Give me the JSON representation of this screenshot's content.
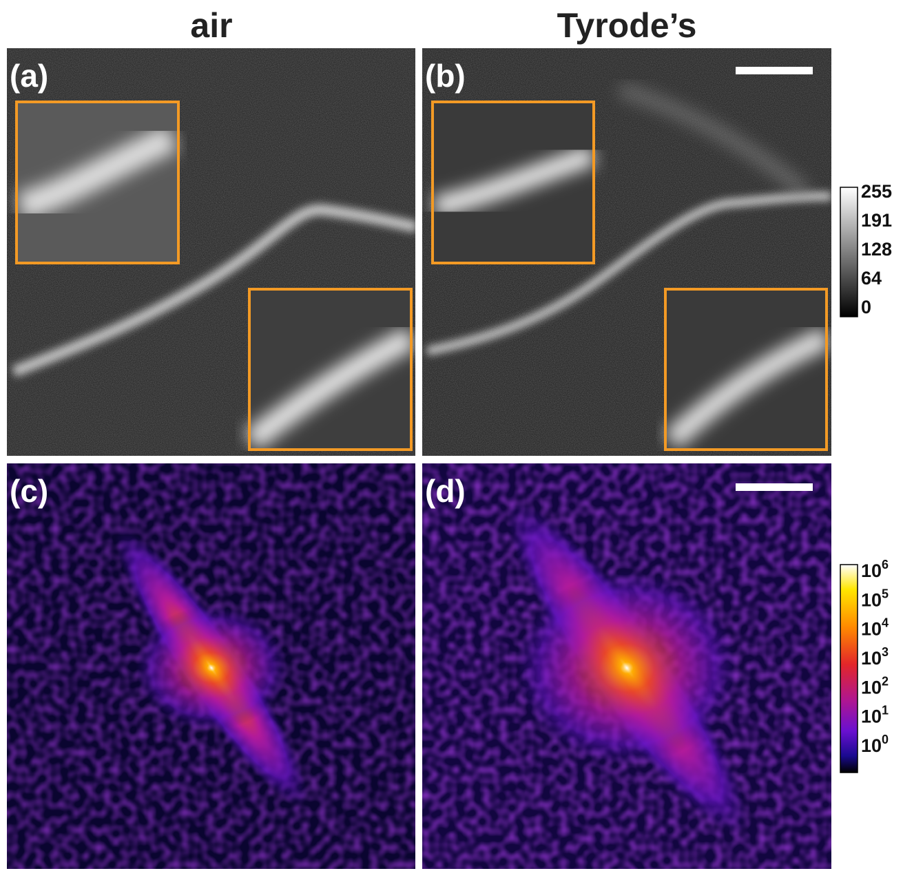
{
  "columns": [
    "air",
    "Tyrode’s"
  ],
  "panels": [
    "(a)",
    "(b)",
    "(c)",
    "(d)"
  ],
  "colorbar_linear": {
    "ticks": [
      "255",
      "191",
      "128",
      "64",
      "0"
    ]
  },
  "colorbar_log": {
    "ticks": [
      {
        "base": "10",
        "exponent": "6"
      },
      {
        "base": "10",
        "exponent": "5"
      },
      {
        "base": "10",
        "exponent": "4"
      },
      {
        "base": "10",
        "exponent": "3"
      },
      {
        "base": "10",
        "exponent": "2"
      },
      {
        "base": "10",
        "exponent": "1"
      },
      {
        "base": "10",
        "exponent": "0"
      }
    ]
  }
}
